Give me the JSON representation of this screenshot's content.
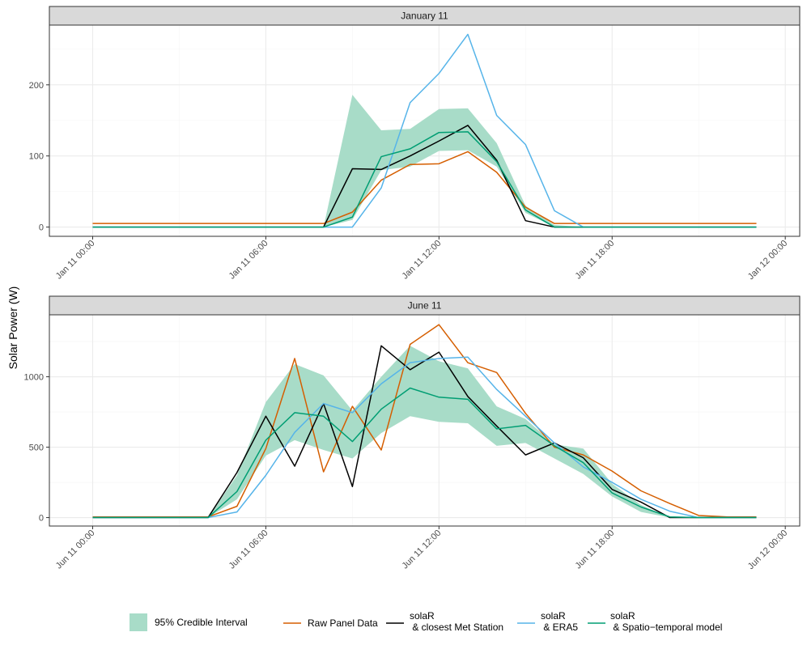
{
  "chart_data": [
    {
      "type": "line",
      "title": "January 11",
      "ylabel": "Solar Power (W)",
      "x_unit": "hours since Jan 11 00:00",
      "xlim": [
        -1.5,
        24.5
      ],
      "ylim": [
        -13,
        284
      ],
      "x_ticks": [
        0,
        6,
        12,
        18,
        24
      ],
      "x_tick_labels": [
        "Jan 11 00:00",
        "Jan 11 06:00",
        "Jan 11 12:00",
        "Jan 11 18:00",
        "Jan 12 00:00"
      ],
      "y_ticks": [
        0,
        100,
        200
      ],
      "y_tick_labels": [
        "0",
        "100",
        "200"
      ],
      "x": [
        0,
        1,
        2,
        3,
        4,
        5,
        6,
        7,
        8,
        9,
        10,
        11,
        12,
        13,
        14,
        15,
        16,
        17,
        18,
        19,
        20,
        21,
        22,
        23
      ],
      "interval": {
        "name": "95% Credible Interval",
        "x": [
          0,
          1,
          2,
          3,
          4,
          5,
          6,
          7,
          8,
          9,
          10,
          11,
          12,
          13,
          14,
          15,
          16,
          17,
          18,
          19,
          20,
          21,
          22,
          23
        ],
        "lower": [
          0,
          0,
          0,
          0,
          0,
          0,
          0,
          0,
          0,
          10,
          80,
          85,
          107,
          108,
          85,
          20,
          0,
          0,
          0,
          0,
          0,
          0,
          0,
          0
        ],
        "upper": [
          0,
          0,
          0,
          0,
          0,
          0,
          0,
          0,
          0,
          186,
          136,
          138,
          166,
          167,
          118,
          30,
          3,
          0,
          0,
          0,
          0,
          0,
          0,
          0
        ]
      },
      "series": [
        {
          "name": "Raw Panel Data",
          "values": [
            5,
            5,
            5,
            5,
            5,
            5,
            5,
            5,
            5,
            21,
            66,
            88,
            89,
            106,
            77,
            28,
            5,
            5,
            5,
            5,
            5,
            5,
            5,
            5
          ]
        },
        {
          "name": "solaR & closest Met Station",
          "values": [
            0,
            0,
            0,
            0,
            0,
            0,
            0,
            0,
            0,
            82,
            81,
            100,
            121,
            143,
            94,
            9,
            0,
            0,
            0,
            0,
            0,
            0,
            0,
            0
          ]
        },
        {
          "name": "solaR & ERA5",
          "values": [
            0,
            0,
            0,
            0,
            0,
            0,
            0,
            0,
            0,
            0,
            55,
            175,
            216,
            271,
            157,
            116,
            23,
            0,
            0,
            0,
            0,
            0,
            0,
            0
          ]
        },
        {
          "name": "solaR & Spatio-temporal model",
          "values": [
            0,
            0,
            0,
            0,
            0,
            0,
            0,
            0,
            0,
            14,
            99,
            110,
            133,
            134,
            92,
            24,
            0,
            0,
            0,
            0,
            0,
            0,
            0,
            0
          ]
        }
      ]
    },
    {
      "type": "line",
      "title": "June 11",
      "ylabel": "Solar Power (W)",
      "x_unit": "hours since Jun 11 00:00",
      "xlim": [
        -1.5,
        24.5
      ],
      "ylim": [
        -60,
        1440
      ],
      "x_ticks": [
        0,
        6,
        12,
        18,
        24
      ],
      "x_tick_labels": [
        "Jun 11 00:00",
        "Jun 11 06:00",
        "Jun 11 12:00",
        "Jun 11 18:00",
        "Jun 12 00:00"
      ],
      "y_ticks": [
        0,
        500,
        1000
      ],
      "y_tick_labels": [
        "0",
        "500",
        "1000"
      ],
      "x": [
        0,
        1,
        2,
        3,
        4,
        5,
        6,
        7,
        8,
        9,
        10,
        11,
        12,
        13,
        14,
        15,
        16,
        17,
        18,
        19,
        20,
        21,
        22,
        23
      ],
      "interval": {
        "name": "95% Credible Interval",
        "x": [
          0,
          1,
          2,
          3,
          4,
          5,
          6,
          7,
          8,
          9,
          10,
          11,
          12,
          13,
          14,
          15,
          16,
          17,
          18,
          19,
          20,
          21,
          22,
          23
        ],
        "lower": [
          0,
          0,
          0,
          0,
          0,
          130,
          440,
          550,
          480,
          420,
          600,
          720,
          680,
          670,
          510,
          530,
          420,
          310,
          150,
          40,
          0,
          0,
          0,
          0
        ],
        "upper": [
          0,
          0,
          0,
          0,
          0,
          300,
          820,
          1090,
          1010,
          760,
          1000,
          1220,
          1110,
          1060,
          790,
          700,
          520,
          490,
          240,
          90,
          0,
          0,
          0,
          0
        ]
      },
      "series": [
        {
          "name": "Raw Panel Data",
          "values": [
            5,
            5,
            5,
            5,
            5,
            80,
            490,
            1130,
            325,
            790,
            480,
            1230,
            1370,
            1100,
            1030,
            740,
            500,
            445,
            330,
            190,
            100,
            15,
            5,
            5
          ]
        },
        {
          "name": "solaR & closest Met Station",
          "values": [
            0,
            0,
            0,
            0,
            0,
            320,
            720,
            365,
            810,
            220,
            1220,
            1050,
            1175,
            860,
            650,
            445,
            530,
            425,
            200,
            110,
            0,
            0,
            0,
            0
          ]
        },
        {
          "name": "solaR & ERA5",
          "values": [
            0,
            0,
            0,
            0,
            0,
            40,
            300,
            605,
            810,
            745,
            950,
            1100,
            1130,
            1140,
            910,
            720,
            530,
            360,
            250,
            130,
            45,
            0,
            0,
            0
          ]
        },
        {
          "name": "solaR & Spatio-temporal model",
          "values": [
            0,
            0,
            0,
            0,
            0,
            185,
            550,
            745,
            720,
            540,
            770,
            920,
            855,
            840,
            630,
            655,
            510,
            390,
            175,
            75,
            5,
            0,
            0,
            0
          ]
        }
      ]
    }
  ],
  "colors": {
    "interval": "#a8dcc8",
    "Raw Panel Data": "#d55e00",
    "solaR & closest Met Station": "#000000",
    "solaR & ERA5": "#56b4e9",
    "solaR & Spatio-temporal model": "#009e73",
    "strip": "#d9d9d9",
    "grid_major": "#ebebeb",
    "grid_minor": "#f5f5f5"
  },
  "ylabel": "Solar Power (W)",
  "legend": {
    "interval_label": "95% Credible Interval",
    "items": [
      {
        "key": "Raw Panel Data",
        "line1": "Raw Panel Data",
        "line2": ""
      },
      {
        "key": "solaR & closest Met Station",
        "line1": "solaR",
        "line2": " & closest Met Station"
      },
      {
        "key": "solaR & ERA5",
        "line1": "solaR",
        "line2": " & ERA5"
      },
      {
        "key": "solaR & Spatio-temporal model",
        "line1": "solaR",
        "line2": " & Spatio−temporal model"
      }
    ]
  }
}
